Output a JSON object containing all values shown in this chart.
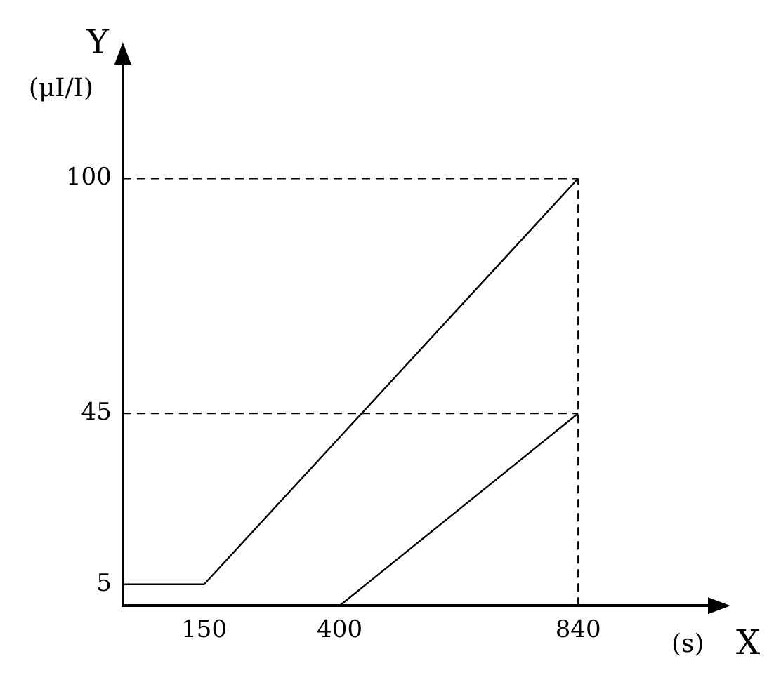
{
  "chart_data": {
    "type": "line",
    "xlabel": "(s)",
    "ylabel": "(μI/I)",
    "annotations": [
      "X",
      "Y"
    ],
    "series": [
      {
        "color": "#000000",
        "x": [
          0,
          150,
          840
        ],
        "values": [
          5,
          5,
          100
        ]
      },
      {
        "color": "#000000",
        "x": [
          0,
          400,
          840
        ],
        "values": [
          0,
          0,
          45
        ]
      }
    ],
    "xlim": [
      0,
      1090
    ],
    "xticks": [
      150,
      400,
      840
    ],
    "ylim": [
      0,
      128
    ],
    "yticks": [
      5,
      45,
      100
    ],
    "ref_lines": [
      {
        "axis": "y",
        "value": 100,
        "line_style": "dashed"
      },
      {
        "axis": "y",
        "value": 45,
        "line_style": "dashed"
      },
      {
        "axis": "x",
        "value": 840,
        "line_style": "dashed"
      }
    ],
    "grid": false,
    "legend": false,
    "marker": "none",
    "line_style": "solid"
  }
}
